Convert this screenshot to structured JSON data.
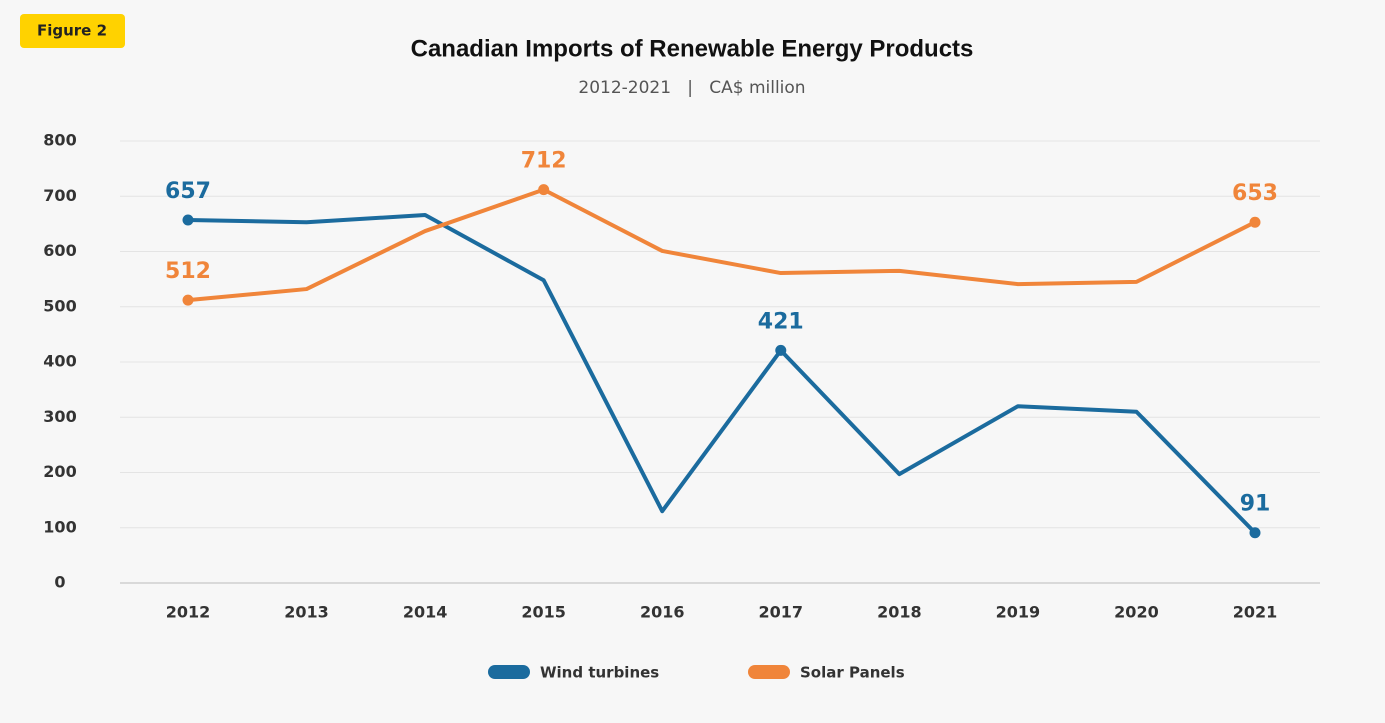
{
  "figure_label": "Figure 2",
  "chart_data": {
    "type": "line",
    "title": "Canadian Imports of Renewable Energy Products",
    "subtitle": "2012-2021   |   CA$ million",
    "categories": [
      "2012",
      "2013",
      "2014",
      "2015",
      "2016",
      "2017",
      "2018",
      "2019",
      "2020",
      "2021"
    ],
    "series": [
      {
        "name": "Wind turbines",
        "color": "#1b6b9e",
        "values": [
          657,
          653,
          666,
          548,
          130,
          421,
          197,
          320,
          310,
          91
        ],
        "labeled": [
          true,
          false,
          false,
          false,
          false,
          true,
          false,
          false,
          false,
          true
        ]
      },
      {
        "name": "Solar Panels",
        "color": "#f0853a",
        "values": [
          512,
          532,
          637,
          712,
          601,
          561,
          565,
          541,
          545,
          653
        ],
        "labeled": [
          true,
          false,
          false,
          true,
          false,
          false,
          false,
          false,
          false,
          true
        ]
      }
    ],
    "ylim": [
      0,
      800
    ],
    "yticks": [
      0,
      100,
      200,
      300,
      400,
      500,
      600,
      700,
      800
    ],
    "grid": true,
    "legend": "bottom"
  }
}
